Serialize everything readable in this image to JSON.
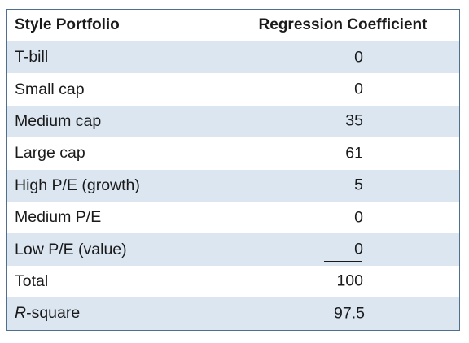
{
  "table": {
    "headers": {
      "left": "Style Portfolio",
      "right": "Regression Coefficient"
    },
    "rows": [
      {
        "label": "T-bill",
        "value": "0"
      },
      {
        "label": "Small cap",
        "value": "0"
      },
      {
        "label": "Medium cap",
        "value": "35"
      },
      {
        "label": "Large cap",
        "value": "61"
      },
      {
        "label": "High P/E (growth)",
        "value": "5"
      },
      {
        "label": "Medium P/E",
        "value": "0"
      },
      {
        "label": "Low P/E (value)",
        "value": "0"
      },
      {
        "label": "Total",
        "value": "100"
      }
    ],
    "rsquare": {
      "label_italic": "R",
      "label_rest": "-square",
      "value": "97.5"
    }
  },
  "colors": {
    "shaded_row": "#dce6f1",
    "border": "#4f6f8f"
  }
}
